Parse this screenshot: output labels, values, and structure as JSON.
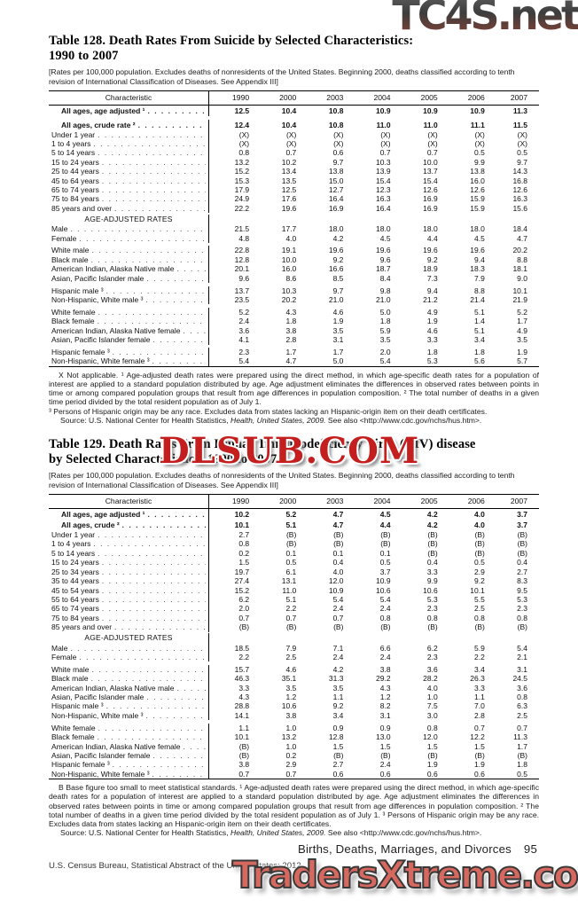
{
  "watermarks": {
    "top": "TC4S.net",
    "middle": "DLSUB.COM",
    "bottom": "TradersXtreme.com"
  },
  "table128": {
    "title": [
      "Table 128. Death Rates From Suicide by Selected Characteristics:",
      "1990 to 2007"
    ],
    "note": "[Rates per 100,000 population. Excludes deaths of nonresidents of the United States. Beginning 2000, deaths classified according to tenth revision of International Classification of Diseases. See Appendix III]",
    "columns": [
      "Characteristic",
      "1990",
      "2000",
      "2003",
      "2004",
      "2005",
      "2006",
      "2007"
    ],
    "rows": [
      {
        "label": "All ages, age adjusted ¹",
        "bold": true,
        "values": [
          "12.5",
          "10.4",
          "10.8",
          "10.9",
          "10.9",
          "10.9",
          "11.3"
        ]
      },
      {
        "label": "All ages, crude rate ²",
        "bold": true,
        "gap": true,
        "values": [
          "12.4",
          "10.4",
          "10.8",
          "11.0",
          "11.0",
          "11.1",
          "11.5"
        ]
      },
      {
        "label": "Under 1 year",
        "values": [
          "(X)",
          "(X)",
          "(X)",
          "(X)",
          "(X)",
          "(X)",
          "(X)"
        ]
      },
      {
        "label": "1 to 4 years",
        "values": [
          "(X)",
          "(X)",
          "(X)",
          "(X)",
          "(X)",
          "(X)",
          "(X)"
        ]
      },
      {
        "label": "5 to 14 years",
        "values": [
          "0.8",
          "0.7",
          "0.6",
          "0.7",
          "0.7",
          "0.5",
          "0.5"
        ]
      },
      {
        "label": "15 to 24 years",
        "values": [
          "13.2",
          "10.2",
          "9.7",
          "10.3",
          "10.0",
          "9.9",
          "9.7"
        ]
      },
      {
        "label": "25 to 44 years",
        "values": [
          "15.2",
          "13.4",
          "13.8",
          "13.9",
          "13.7",
          "13.8",
          "14.3"
        ]
      },
      {
        "label": "45 to 64 years",
        "values": [
          "15.3",
          "13.5",
          "15.0",
          "15.4",
          "15.4",
          "16.0",
          "16.8"
        ]
      },
      {
        "label": "65 to 74 years",
        "values": [
          "17.9",
          "12.5",
          "12.7",
          "12.3",
          "12.6",
          "12.6",
          "12.6"
        ]
      },
      {
        "label": "75 to 84 years",
        "values": [
          "24.9",
          "17.6",
          "16.4",
          "16.3",
          "16.9",
          "15.9",
          "16.3"
        ]
      },
      {
        "label": "85 years and over",
        "values": [
          "22.2",
          "19.6",
          "16.9",
          "16.4",
          "16.9",
          "15.9",
          "15.6"
        ]
      },
      {
        "section": "AGE-ADJUSTED RATES"
      },
      {
        "label": "Male",
        "values": [
          "21.5",
          "17.7",
          "18.0",
          "18.0",
          "18.0",
          "18.0",
          "18.4"
        ]
      },
      {
        "label": "Female",
        "values": [
          "4.8",
          "4.0",
          "4.2",
          "4.5",
          "4.4",
          "4.5",
          "4.7"
        ]
      },
      {
        "label": "White male",
        "gap": true,
        "values": [
          "22.8",
          "19.1",
          "19.6",
          "19.6",
          "19.6",
          "19.6",
          "20.2"
        ]
      },
      {
        "label": "Black male",
        "values": [
          "12.8",
          "10.0",
          "9.2",
          "9.6",
          "9.2",
          "9.4",
          "8.8"
        ]
      },
      {
        "label": "American Indian, Alaska Native male",
        "values": [
          "20.1",
          "16.0",
          "16.6",
          "18.7",
          "18.9",
          "18.3",
          "18.1"
        ]
      },
      {
        "label": "Asian, Pacific Islander male",
        "values": [
          "9.6",
          "8.6",
          "8.5",
          "8.4",
          "7.3",
          "7.9",
          "9.0"
        ]
      },
      {
        "label": "Hispanic male ³",
        "gap": true,
        "values": [
          "13.7",
          "10.3",
          "9.7",
          "9.8",
          "9.4",
          "8.8",
          "10.1"
        ]
      },
      {
        "label": "Non-Hispanic, White male ³",
        "values": [
          "23.5",
          "20.2",
          "21.0",
          "21.0",
          "21.2",
          "21.4",
          "21.9"
        ]
      },
      {
        "label": "White female",
        "gap": true,
        "values": [
          "5.2",
          "4.3",
          "4.6",
          "5.0",
          "4.9",
          "5.1",
          "5.2"
        ]
      },
      {
        "label": "Black female",
        "values": [
          "2.4",
          "1.8",
          "1.9",
          "1.8",
          "1.9",
          "1.4",
          "1.7"
        ]
      },
      {
        "label": "American Indian, Alaska Native female",
        "values": [
          "3.6",
          "3.8",
          "3.5",
          "5.9",
          "4.6",
          "5.1",
          "4.9"
        ]
      },
      {
        "label": "Asian, Pacific Islander female",
        "values": [
          "4.1",
          "2.8",
          "3.1",
          "3.5",
          "3.3",
          "3.4",
          "3.5"
        ]
      },
      {
        "label": "Hispanic female ³",
        "gap": true,
        "values": [
          "2.3",
          "1.7",
          "1.7",
          "2.0",
          "1.8",
          "1.8",
          "1.9"
        ]
      },
      {
        "label": "Non-Hispanic, White female ³",
        "values": [
          "5.4",
          "4.7",
          "5.0",
          "5.4",
          "5.3",
          "5.6",
          "5.7"
        ]
      }
    ],
    "footnotes": [
      "X Not applicable. ¹ Age-adjusted death rates were prepared using the direct method, in which age-specific death rates for a population of interest are applied to a standard population distributed by age. Age adjustment eliminates the differences in observed rates between points in time or among compared population groups that result from age differences in population composition. ² The total number of deaths in a given time period divided by the total resident population as of July 1.",
      "³ Persons of Hispanic origin may be any race. Excludes data from states lacking an Hispanic-origin item on their death certificates."
    ],
    "source": {
      "pre": "Source: U.S. National Center for Health Statistics, ",
      "italic": "Health, United States, 2009.",
      "post": " See also <http://www.cdc.gov/nchs/hus.htm>."
    }
  },
  "table129": {
    "title": [
      "Table 129. Death Rates From Human Immunodeficiency Virus (HIV) disease",
      "by Selected Characteristics: 1990 to 2007"
    ],
    "note": "[Rates per 100,000 population. Excludes deaths of nonresidents of the United States. Beginning 2000, deaths classified according to tenth revision of International Classification of Diseases. See Appendix III]",
    "columns": [
      "Characteristic",
      "1990",
      "2000",
      "2003",
      "2004",
      "2005",
      "2006",
      "2007"
    ],
    "rows": [
      {
        "label": "All ages, age adjusted ¹",
        "bold": true,
        "values": [
          "10.2",
          "5.2",
          "4.7",
          "4.5",
          "4.2",
          "4.0",
          "3.7"
        ]
      },
      {
        "label": "All ages, crude ²",
        "bold": true,
        "values": [
          "10.1",
          "5.1",
          "4.7",
          "4.4",
          "4.2",
          "4.0",
          "3.7"
        ]
      },
      {
        "label": "Under 1 year",
        "values": [
          "2.7",
          "(B)",
          "(B)",
          "(B)",
          "(B)",
          "(B)",
          "(B)"
        ]
      },
      {
        "label": "1 to 4 years",
        "values": [
          "0.8",
          "(B)",
          "(B)",
          "(B)",
          "(B)",
          "(B)",
          "(B)"
        ]
      },
      {
        "label": "5 to 14 years",
        "values": [
          "0.2",
          "0.1",
          "0.1",
          "0.1",
          "(B)",
          "(B)",
          "(B)"
        ]
      },
      {
        "label": "15 to 24 years",
        "values": [
          "1.5",
          "0.5",
          "0.4",
          "0.5",
          "0.4",
          "0.5",
          "0.4"
        ]
      },
      {
        "label": "25 to 34 years",
        "values": [
          "19.7",
          "6.1",
          "4.0",
          "3.7",
          "3.3",
          "2.9",
          "2.7"
        ]
      },
      {
        "label": "35 to 44 years",
        "values": [
          "27.4",
          "13.1",
          "12.0",
          "10.9",
          "9.9",
          "9.2",
          "8.3"
        ]
      },
      {
        "label": "45 to 54 years",
        "values": [
          "15.2",
          "11.0",
          "10.9",
          "10.6",
          "10.6",
          "10.1",
          "9.5"
        ]
      },
      {
        "label": "55 to 64 years",
        "values": [
          "6.2",
          "5.1",
          "5.4",
          "5.4",
          "5.3",
          "5.5",
          "5.3"
        ]
      },
      {
        "label": "65 to 74 years",
        "values": [
          "2.0",
          "2.2",
          "2.4",
          "2.4",
          "2.3",
          "2.5",
          "2.3"
        ]
      },
      {
        "label": "75 to 84 years",
        "values": [
          "0.7",
          "0.7",
          "0.7",
          "0.8",
          "0.8",
          "0.8",
          "0.8"
        ]
      },
      {
        "label": "85 years and over",
        "values": [
          "(B)",
          "(B)",
          "(B)",
          "(B)",
          "(B)",
          "(B)",
          "(B)"
        ]
      },
      {
        "section": "AGE-ADJUSTED RATES"
      },
      {
        "label": "Male",
        "values": [
          "18.5",
          "7.9",
          "7.1",
          "6.6",
          "6.2",
          "5.9",
          "5.4"
        ]
      },
      {
        "label": "Female",
        "values": [
          "2.2",
          "2.5",
          "2.4",
          "2.4",
          "2.3",
          "2.2",
          "2.1"
        ]
      },
      {
        "label": "White male",
        "gap": true,
        "values": [
          "15.7",
          "4.6",
          "4.2",
          "3.8",
          "3.6",
          "3.4",
          "3.1"
        ]
      },
      {
        "label": "Black male",
        "values": [
          "46.3",
          "35.1",
          "31.3",
          "29.2",
          "28.2",
          "26.3",
          "24.5"
        ]
      },
      {
        "label": "American Indian, Alaska Native male",
        "values": [
          "3.3",
          "3.5",
          "3.5",
          "4.3",
          "4.0",
          "3.3",
          "3.6"
        ]
      },
      {
        "label": "Asian, Pacific Islander male",
        "values": [
          "4.3",
          "1.2",
          "1.1",
          "1.2",
          "1.0",
          "1.1",
          "0.8"
        ]
      },
      {
        "label": "Hispanic male ³",
        "values": [
          "28.8",
          "10.6",
          "9.2",
          "8.2",
          "7.5",
          "7.0",
          "6.3"
        ]
      },
      {
        "label": "Non-Hispanic, White male ³",
        "values": [
          "14.1",
          "3.8",
          "3.4",
          "3.1",
          "3.0",
          "2.8",
          "2.5"
        ]
      },
      {
        "label": "White female",
        "gap": true,
        "values": [
          "1.1",
          "1.0",
          "0.9",
          "0.9",
          "0.8",
          "0.7",
          "0.7"
        ]
      },
      {
        "label": "Black female",
        "values": [
          "10.1",
          "13.2",
          "12.8",
          "13.0",
          "12.0",
          "12.2",
          "11.3"
        ]
      },
      {
        "label": "American Indian, Alaska Native female",
        "values": [
          "(B)",
          "1.0",
          "1.5",
          "1.5",
          "1.5",
          "1.5",
          "1.7"
        ]
      },
      {
        "label": "Asian, Pacific Islander female",
        "values": [
          "(B)",
          "0.2",
          "(B)",
          "(B)",
          "(B)",
          "(B)",
          "(B)"
        ]
      },
      {
        "label": "Hispanic female ³",
        "values": [
          "3.8",
          "2.9",
          "2.7",
          "2.4",
          "1.9",
          "1.9",
          "1.8"
        ]
      },
      {
        "label": "Non-Hispanic, White female ³",
        "values": [
          "0.7",
          "0.7",
          "0.6",
          "0.6",
          "0.6",
          "0.6",
          "0.5"
        ]
      }
    ],
    "footnotes": [
      "B Base figure too small to meet statistical standards. ¹ Age-adjusted death rates were prepared using the direct method, in which age-specific death rates for a population of interest are applied to a standard population distributed by age. Age adjustment eliminates the differences in observed rates between points in time or among compared population groups that result from age differences in population composition. ² The total number of deaths in a given time period divided by the total resident population as of July 1. ³ Persons of Hispanic origin may be any race. Excludes data from states lacking an Hispanic-origin item on their death certificates."
    ],
    "source": {
      "pre": "Source: U.S. National Center for Health Statistics, ",
      "italic": "Health, United States, 2009.",
      "post": " See also <http://www.cdc.gov/nchs/hus.htm>."
    }
  },
  "footer": {
    "section": "Births, Deaths, Marriages, and Divorces",
    "page": "95",
    "left": "U.S. Census Bureau, Statistical Abstract of the United States: 2012"
  }
}
